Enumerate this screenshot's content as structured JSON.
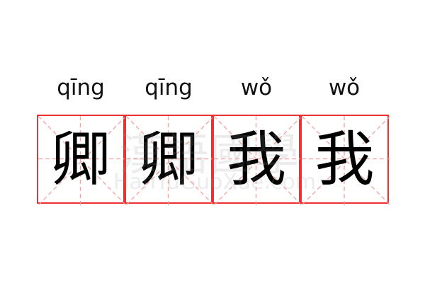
{
  "cells": [
    {
      "pinyin": "qīng",
      "char": "卿"
    },
    {
      "pinyin": "qīng",
      "char": "卿"
    },
    {
      "pinyin": "wǒ",
      "char": "我"
    },
    {
      "pinyin": "wǒ",
      "char": "我"
    }
  ],
  "watermark": {
    "chinese": "漢語國學",
    "latin": "HanYuGuoXue.com"
  },
  "colors": {
    "border": "#f03030",
    "guide": "#f7a0a0",
    "text": "#000000"
  }
}
